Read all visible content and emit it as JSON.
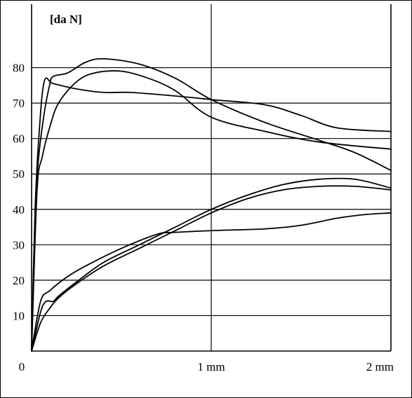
{
  "chart_data": {
    "type": "line",
    "title": "",
    "ylabel": "[da N]",
    "xlabel": "",
    "xlim": [
      0,
      2
    ],
    "ylim": [
      0,
      90
    ],
    "yticks": [
      10,
      20,
      30,
      40,
      50,
      60,
      70,
      80
    ],
    "yticklabels": [
      "10",
      "20",
      "30",
      "40",
      "50",
      "60",
      "70",
      "80"
    ],
    "xticks": [
      0,
      1,
      2
    ],
    "xticklabels": [
      "0",
      "1 mm",
      "2 mm"
    ],
    "grid": true,
    "series": [
      {
        "x": [
          0,
          0.02,
          0.04,
          0.07,
          0.12,
          0.25,
          0.4,
          0.55,
          0.8,
          1.0,
          1.3,
          1.5,
          1.7,
          2.0
        ],
        "y": [
          0,
          40,
          60,
          76,
          75.5,
          74,
          73,
          73,
          72,
          71,
          69.5,
          66.5,
          63,
          62
        ]
      },
      {
        "x": [
          0,
          0.02,
          0.04,
          0.07,
          0.1,
          0.12,
          0.2,
          0.3,
          0.4,
          0.6,
          0.8,
          1.0,
          1.3,
          1.6,
          1.8,
          2.0
        ],
        "y": [
          0,
          40,
          55,
          67,
          75,
          77.5,
          78.5,
          81.5,
          82.5,
          81,
          77,
          71,
          64.5,
          59.5,
          56,
          51
        ]
      },
      {
        "x": [
          0,
          0.03,
          0.06,
          0.1,
          0.15,
          0.25,
          0.35,
          0.5,
          0.65,
          0.8,
          1.0,
          1.3,
          1.6,
          2.0
        ],
        "y": [
          0,
          45,
          55,
          63,
          70,
          76,
          78.5,
          79,
          77,
          73.5,
          66,
          62,
          59,
          57
        ]
      },
      {
        "x": [
          0,
          0.05,
          0.08,
          0.12,
          0.15,
          0.25,
          0.4,
          0.6,
          0.8,
          1.0,
          1.2,
          1.4,
          1.6,
          1.8,
          2.0
        ],
        "y": [
          0,
          11,
          14,
          14,
          15.5,
          19.5,
          25,
          30,
          35,
          40,
          44,
          47,
          48.5,
          48.5,
          46
        ]
      },
      {
        "x": [
          0,
          0.05,
          0.1,
          0.15,
          0.25,
          0.4,
          0.6,
          0.8,
          1.0,
          1.2,
          1.4,
          1.6,
          1.8,
          2.0
        ],
        "y": [
          0,
          8,
          12,
          15,
          19,
          24,
          29,
          34,
          39,
          43,
          45.5,
          46.5,
          46.5,
          45.5
        ]
      },
      {
        "x": [
          0,
          0.05,
          0.1,
          0.2,
          0.3,
          0.5,
          0.7,
          0.8,
          1.0,
          1.3,
          1.5,
          1.7,
          1.85,
          2.0
        ],
        "y": [
          0,
          14,
          17,
          21,
          24,
          29,
          33,
          33.5,
          34,
          34.5,
          35.5,
          37.5,
          38.5,
          39
        ]
      }
    ]
  }
}
